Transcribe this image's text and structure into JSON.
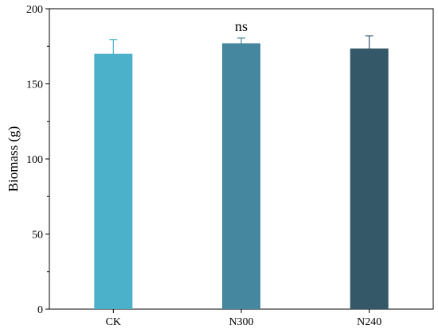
{
  "chart_data": {
    "type": "bar",
    "categories": [
      "CK",
      "N300",
      "N240"
    ],
    "values": [
      170,
      177,
      173.5
    ],
    "errors": [
      9.5,
      3.5,
      8.5
    ],
    "colors": [
      "#4BB1CA",
      "#45879E",
      "#345868"
    ],
    "ylabel": "Biomass (g)",
    "xlabel": "",
    "ylim": [
      0,
      200
    ],
    "yticks": [
      0,
      50,
      100,
      150,
      200
    ],
    "annotations": [
      {
        "category": "N300",
        "text": "ns"
      }
    ],
    "grid": false
  }
}
